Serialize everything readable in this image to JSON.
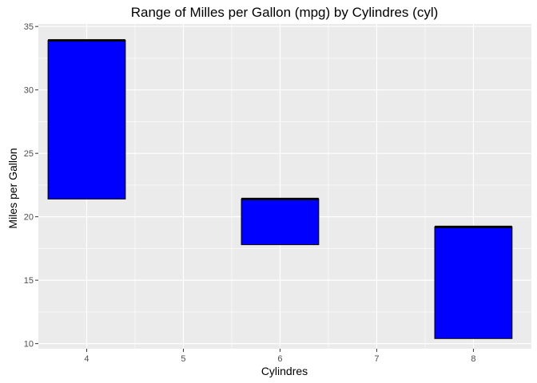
{
  "chart_data": {
    "type": "range-bar",
    "title": "Range of Milles per Gallon (mpg) by Cylindres (cyl)",
    "xlabel": "Cylindres",
    "ylabel": "Miles per Gallon",
    "xlim": [
      3.5,
      8.6
    ],
    "ylim": [
      9.6,
      35.2
    ],
    "x_ticks": [
      4,
      5,
      6,
      7,
      8
    ],
    "y_ticks": [
      10,
      15,
      20,
      25,
      30,
      35
    ],
    "bar_width": 0.8,
    "grid": true,
    "bars": [
      {
        "x": 4,
        "ymin": 21.4,
        "ymax": 33.9
      },
      {
        "x": 6,
        "ymin": 17.8,
        "ymax": 21.4
      },
      {
        "x": 8,
        "ymin": 10.4,
        "ymax": 19.2
      }
    ],
    "colors": {
      "bar_fill": "#0000ff",
      "bar_outline": "#000000",
      "panel": "#ebebeb",
      "grid": "#ffffff"
    }
  }
}
